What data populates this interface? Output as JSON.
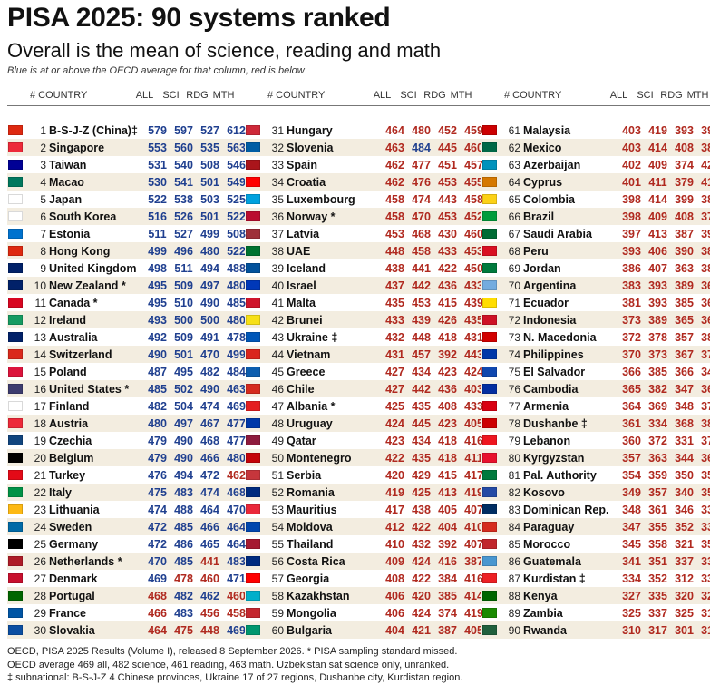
{
  "title": "PISA 2025: 90 systems ranked",
  "subtitle": "Overall is the mean of science, reading and math",
  "note": "Blue is at or above the OECD average for that column, red is below",
  "headers": {
    "country": "# COUNTRY",
    "all": "ALL",
    "sci": "SCI",
    "rdg": "RDG",
    "mth": "MTH"
  },
  "colors": {
    "above": "#1f3f8f",
    "below": "#b0291f",
    "row_alt": "#f3ede0"
  },
  "oecd_average": {
    "all": 469,
    "sci": 482,
    "rdg": 461,
    "mth": 463
  },
  "chart_data": {
    "type": "table",
    "columns": [
      "#",
      "COUNTRY",
      "ALL",
      "SCI",
      "RDG",
      "MTH"
    ],
    "rows": [
      [
        1,
        "B-S-J-Z (China)‡",
        579,
        597,
        527,
        612
      ],
      [
        2,
        "Singapore",
        553,
        560,
        535,
        563
      ],
      [
        3,
        "Taiwan",
        531,
        540,
        508,
        546
      ],
      [
        4,
        "Macao",
        530,
        541,
        501,
        549
      ],
      [
        5,
        "Japan",
        522,
        538,
        503,
        525
      ],
      [
        6,
        "South Korea",
        516,
        526,
        501,
        522
      ],
      [
        7,
        "Estonia",
        511,
        527,
        499,
        508
      ],
      [
        8,
        "Hong Kong",
        499,
        496,
        480,
        522
      ],
      [
        9,
        "United Kingdom",
        498,
        511,
        494,
        488
      ],
      [
        10,
        "New Zealand *",
        495,
        509,
        497,
        480
      ],
      [
        11,
        "Canada *",
        495,
        510,
        490,
        485
      ],
      [
        12,
        "Ireland",
        493,
        500,
        500,
        480
      ],
      [
        13,
        "Australia",
        492,
        509,
        491,
        478
      ],
      [
        14,
        "Switzerland",
        490,
        501,
        470,
        499
      ],
      [
        15,
        "Poland",
        487,
        495,
        482,
        484
      ],
      [
        16,
        "United States *",
        485,
        502,
        490,
        463
      ],
      [
        17,
        "Finland",
        482,
        504,
        474,
        469
      ],
      [
        18,
        "Austria",
        480,
        497,
        467,
        477
      ],
      [
        19,
        "Czechia",
        479,
        490,
        468,
        477
      ],
      [
        20,
        "Belgium",
        479,
        490,
        466,
        480
      ],
      [
        21,
        "Turkey",
        476,
        494,
        472,
        462
      ],
      [
        22,
        "Italy",
        475,
        483,
        474,
        468
      ],
      [
        23,
        "Lithuania",
        474,
        488,
        464,
        470
      ],
      [
        24,
        "Sweden",
        472,
        485,
        466,
        464
      ],
      [
        25,
        "Germany",
        472,
        486,
        465,
        464
      ],
      [
        26,
        "Netherlands *",
        470,
        485,
        441,
        483
      ],
      [
        27,
        "Denmark",
        469,
        478,
        460,
        471
      ],
      [
        28,
        "Portugal",
        468,
        482,
        462,
        460
      ],
      [
        29,
        "France",
        466,
        483,
        456,
        458
      ],
      [
        30,
        "Slovakia",
        464,
        475,
        448,
        469
      ],
      [
        31,
        "Hungary",
        464,
        480,
        452,
        459
      ],
      [
        32,
        "Slovenia",
        463,
        484,
        445,
        460
      ],
      [
        33,
        "Spain",
        462,
        477,
        451,
        457
      ],
      [
        34,
        "Croatia",
        462,
        476,
        453,
        455
      ],
      [
        35,
        "Luxembourg",
        458,
        474,
        443,
        458
      ],
      [
        36,
        "Norway *",
        458,
        470,
        453,
        452
      ],
      [
        37,
        "Latvia",
        453,
        468,
        430,
        460
      ],
      [
        38,
        "UAE",
        448,
        458,
        433,
        453
      ],
      [
        39,
        "Iceland",
        438,
        441,
        422,
        450
      ],
      [
        40,
        "Israel",
        437,
        442,
        436,
        433
      ],
      [
        41,
        "Malta",
        435,
        453,
        415,
        439
      ],
      [
        42,
        "Brunei",
        433,
        439,
        426,
        435
      ],
      [
        43,
        "Ukraine ‡",
        432,
        448,
        418,
        431
      ],
      [
        44,
        "Vietnam",
        431,
        457,
        392,
        443
      ],
      [
        45,
        "Greece",
        427,
        434,
        423,
        424
      ],
      [
        46,
        "Chile",
        427,
        442,
        436,
        403
      ],
      [
        47,
        "Albania *",
        425,
        435,
        408,
        433
      ],
      [
        48,
        "Uruguay",
        424,
        445,
        423,
        405
      ],
      [
        49,
        "Qatar",
        423,
        434,
        418,
        416
      ],
      [
        50,
        "Montenegro",
        422,
        435,
        418,
        411
      ],
      [
        51,
        "Serbia",
        420,
        429,
        415,
        417
      ],
      [
        52,
        "Romania",
        419,
        425,
        413,
        419
      ],
      [
        53,
        "Mauritius",
        417,
        438,
        405,
        407
      ],
      [
        54,
        "Moldova",
        412,
        422,
        404,
        410
      ],
      [
        55,
        "Thailand",
        410,
        432,
        392,
        407
      ],
      [
        56,
        "Costa Rica",
        409,
        424,
        416,
        387
      ],
      [
        57,
        "Georgia",
        408,
        422,
        384,
        416
      ],
      [
        58,
        "Kazakhstan",
        406,
        420,
        385,
        414
      ],
      [
        59,
        "Mongolia",
        406,
        424,
        374,
        419
      ],
      [
        60,
        "Bulgaria",
        404,
        421,
        387,
        405
      ],
      [
        61,
        "Malaysia",
        403,
        419,
        393,
        397
      ],
      [
        62,
        "Mexico",
        403,
        414,
        408,
        388
      ],
      [
        63,
        "Azerbaijan",
        402,
        409,
        374,
        422
      ],
      [
        64,
        "Cyprus",
        401,
        411,
        379,
        412
      ],
      [
        65,
        "Colombia",
        398,
        414,
        399,
        381
      ],
      [
        66,
        "Brazil",
        398,
        409,
        408,
        377
      ],
      [
        67,
        "Saudi Arabia",
        397,
        413,
        387,
        390
      ],
      [
        68,
        "Peru",
        393,
        406,
        390,
        382
      ],
      [
        69,
        "Jordan",
        386,
        407,
        363,
        388
      ],
      [
        70,
        "Argentina",
        383,
        393,
        389,
        367
      ],
      [
        71,
        "Ecuador",
        381,
        393,
        385,
        366
      ],
      [
        72,
        "Indonesia",
        373,
        389,
        365,
        364
      ],
      [
        73,
        "N. Macedonia",
        372,
        378,
        357,
        380
      ],
      [
        74,
        "Philippines",
        370,
        373,
        367,
        371
      ],
      [
        75,
        "El Salvador",
        366,
        385,
        366,
        346
      ],
      [
        76,
        "Cambodia",
        365,
        382,
        347,
        366
      ],
      [
        77,
        "Armenia",
        364,
        369,
        348,
        376
      ],
      [
        78,
        "Dushanbe ‡",
        361,
        334,
        368,
        382
      ],
      [
        79,
        "Lebanon",
        360,
        372,
        331,
        377
      ],
      [
        80,
        "Kyrgyzstan",
        357,
        363,
        344,
        364
      ],
      [
        81,
        "Pal. Authority",
        354,
        359,
        350,
        354
      ],
      [
        82,
        "Kosovo",
        349,
        357,
        340,
        350
      ],
      [
        83,
        "Dominican Rep.",
        348,
        361,
        346,
        339
      ],
      [
        84,
        "Paraguay",
        347,
        355,
        352,
        334
      ],
      [
        85,
        "Morocco",
        345,
        358,
        321,
        355
      ],
      [
        86,
        "Guatemala",
        341,
        351,
        337,
        334
      ],
      [
        87,
        "Kurdistan ‡",
        334,
        352,
        312,
        339
      ],
      [
        88,
        "Kenya",
        327,
        335,
        320,
        326
      ],
      [
        89,
        "Zambia",
        325,
        337,
        325,
        314
      ],
      [
        90,
        "Rwanda",
        310,
        317,
        301,
        312
      ]
    ]
  },
  "flags": [
    "#de2910",
    "#ed2939",
    "#000095",
    "#00785e",
    "#ffffff",
    "#ffffff",
    "#0072ce",
    "#de2910",
    "#012169",
    "#012169",
    "#d80621",
    "#169b62",
    "#012169",
    "#da291c",
    "#dc143c",
    "#3c3b6e",
    "#ffffff",
    "#ed2939",
    "#11457e",
    "#000000",
    "#e30a17",
    "#009246",
    "#fdb913",
    "#006aa7",
    "#000000",
    "#ae1c28",
    "#c8102e",
    "#006600",
    "#0055a4",
    "#0b4ea2",
    "#ce2939",
    "#005da4",
    "#aa151b",
    "#ff0000",
    "#00a1de",
    "#ba0c2f",
    "#9e3039",
    "#00732f",
    "#02529c",
    "#0038b8",
    "#cf142b",
    "#f7e017",
    "#0057b8",
    "#da251d",
    "#0d5eaf",
    "#d52b1e",
    "#e41e20",
    "#0038a8",
    "#8d1b3d",
    "#c40308",
    "#c6363c",
    "#002b7f",
    "#ea2839",
    "#0046ae",
    "#a51931",
    "#002b7f",
    "#ff0000",
    "#00afca",
    "#c4272f",
    "#00966e",
    "#cc0001",
    "#006847",
    "#0092bc",
    "#d57800",
    "#fcd116",
    "#009c3b",
    "#006c35",
    "#d91023",
    "#007a3d",
    "#74acdf",
    "#ffdd00",
    "#ce1126",
    "#d20000",
    "#0038a8",
    "#0f47af",
    "#032ea1",
    "#d90012",
    "#cc0000",
    "#ee161f",
    "#e8112d",
    "#007a3d",
    "#244aa5",
    "#002d62",
    "#d52b1e",
    "#c1272d",
    "#4997d0",
    "#ed2024",
    "#006600",
    "#198a00",
    "#20603d"
  ]
}
